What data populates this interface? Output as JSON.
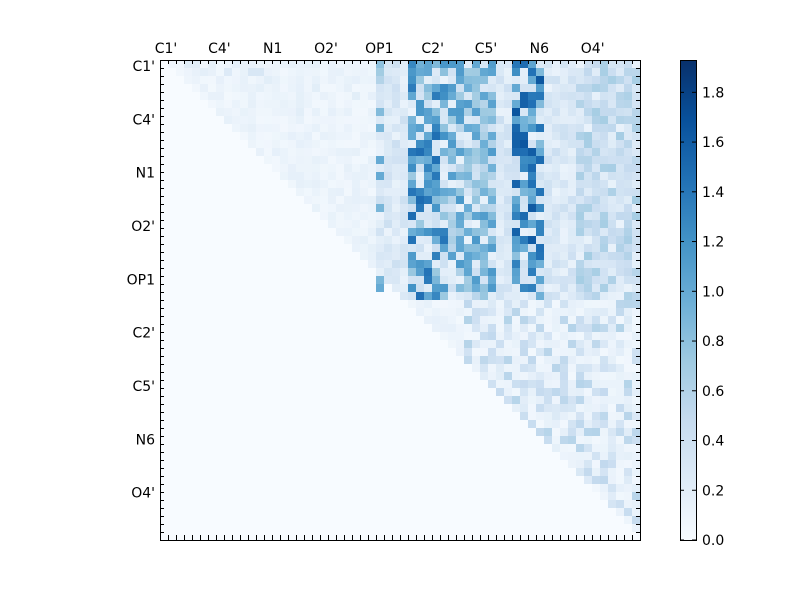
{
  "chart_data": {
    "type": "heatmap",
    "title": "",
    "xlabel": "",
    "ylabel": "",
    "n_rows": 60,
    "n_cols": 60,
    "x_tick_labels": [
      "C1'",
      "C4'",
      "N1",
      "O2'",
      "OP1",
      "C2'",
      "C5'",
      "N6",
      "O4'"
    ],
    "y_tick_labels": [
      "C1'",
      "C4'",
      "N1",
      "O2'",
      "OP1",
      "C2'",
      "C5'",
      "N6",
      "O4'"
    ],
    "x_axis_position": "top",
    "colorbar": {
      "vmin": 0.0,
      "vmax": 1.93,
      "ticks": [
        "0.0",
        "0.2",
        "0.4",
        "0.6",
        "0.8",
        "1.0",
        "1.2",
        "1.4",
        "1.6",
        "1.8"
      ],
      "colormap": "Blues",
      "colors": [
        "#f7fbff",
        "#deebf7",
        "#c6dbef",
        "#9ecae1",
        "#6baed6",
        "#4292c6",
        "#2171b5",
        "#08519c",
        "#08306b"
      ]
    },
    "column_groups": [
      {
        "label": "C2'",
        "columns": [
          31,
          32,
          33,
          34,
          35
        ],
        "approx_value": 1.3
      },
      {
        "label": "C5'",
        "columns": [
          36,
          37,
          38,
          39,
          40,
          41
        ],
        "approx_value": 1.0
      },
      {
        "label": "N6",
        "columns": [
          44,
          45,
          46,
          47
        ],
        "approx_value": 1.45
      },
      {
        "label": "O4'",
        "columns": [
          52,
          53,
          54,
          55,
          56,
          57,
          58,
          59
        ],
        "approx_value": 0.6
      }
    ],
    "layout": "upper-triangular; values above the diagonal, near zero below",
    "cells": [
      [
        0,
        3,
        0.2
      ],
      [
        0,
        4,
        0.2
      ],
      [
        1,
        5,
        0.18
      ],
      [
        1,
        8,
        0.25
      ],
      [
        1,
        11,
        0.3
      ],
      [
        1,
        12,
        0.3
      ],
      [
        2,
        10,
        0.15
      ],
      [
        2,
        13,
        0.2
      ],
      [
        3,
        19,
        0.2
      ],
      [
        4,
        24,
        0.2
      ],
      [
        6,
        17,
        0.2
      ],
      [
        0,
        27,
        0.8
      ],
      [
        1,
        27,
        0.7
      ],
      [
        2,
        27,
        0.6
      ],
      [
        6,
        27,
        0.85
      ],
      [
        8,
        27,
        0.9
      ],
      [
        12,
        27,
        1.0
      ],
      [
        14,
        27,
        1.0
      ],
      [
        18,
        27,
        0.9
      ],
      [
        27,
        27,
        0.9
      ],
      [
        28,
        27,
        1.0
      ]
    ]
  }
}
